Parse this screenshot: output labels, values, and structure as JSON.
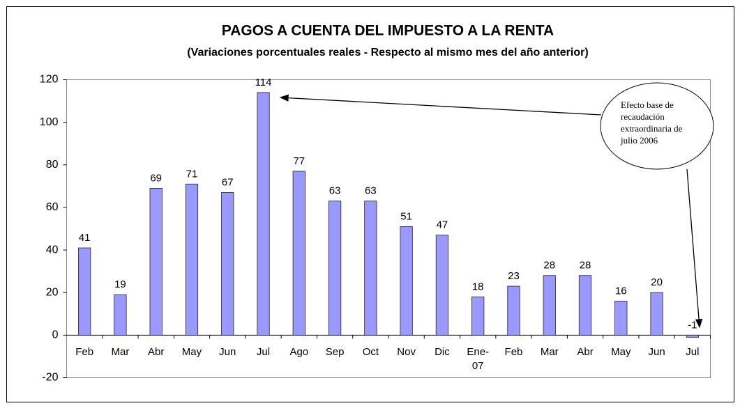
{
  "chart_data": {
    "type": "bar",
    "title": "PAGOS A CUENTA DEL IMPUESTO A LA RENTA",
    "subtitle": "(Variaciones porcentuales reales - Respecto al mismo mes del año anterior)",
    "categories": [
      "Feb",
      "Mar",
      "Abr",
      "May",
      "Jun",
      "Jul",
      "Ago",
      "Sep",
      "Oct",
      "Nov",
      "Dic",
      "Ene-07",
      "Feb",
      "Mar",
      "Abr",
      "May",
      "Jun",
      "Jul"
    ],
    "values": [
      41,
      19,
      69,
      71,
      67,
      114,
      77,
      63,
      63,
      51,
      47,
      18,
      23,
      28,
      28,
      16,
      20,
      -1
    ],
    "color": "#9999ff",
    "ylim": [
      -20,
      120
    ],
    "yticks": [
      -20,
      0,
      20,
      40,
      60,
      80,
      100,
      120
    ],
    "annotation": "Efecto base de recaudación extraordinaria de julio 2006"
  }
}
